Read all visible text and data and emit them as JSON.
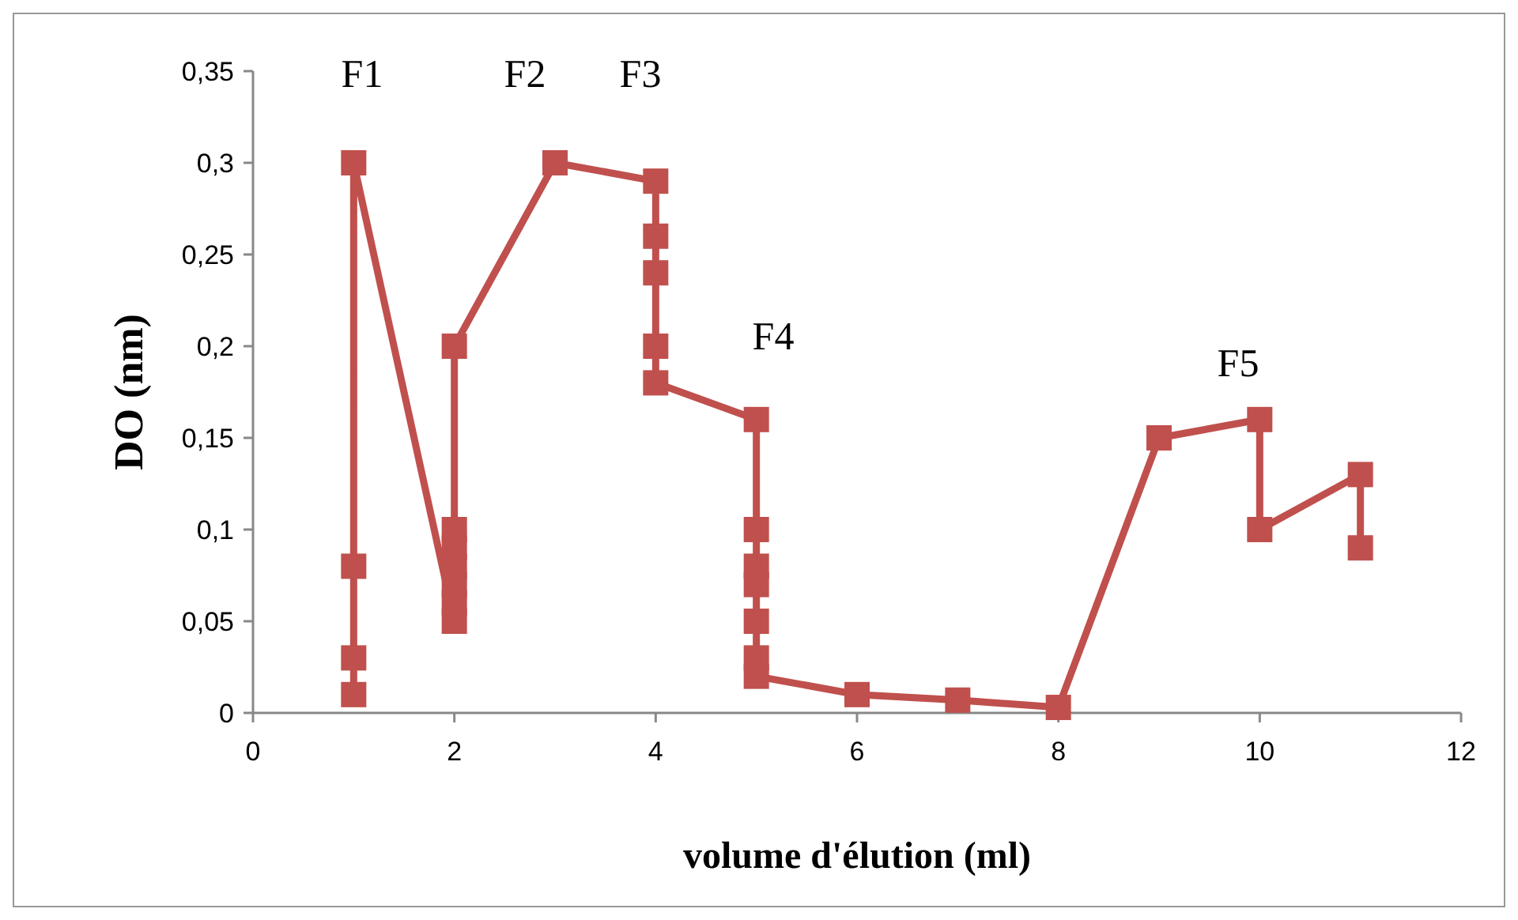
{
  "chart_data": {
    "type": "line",
    "xlabel": "volume d'élution (ml)",
    "ylabel": "DO (nm)",
    "x": [
      1,
      1,
      1,
      1,
      2,
      2,
      2,
      2,
      2,
      2,
      2,
      3,
      4,
      4,
      4,
      4,
      4,
      5,
      5,
      5,
      5,
      5,
      5,
      5,
      6,
      7,
      8,
      9,
      10,
      10,
      11,
      11
    ],
    "series": [
      {
        "color": "#c0504d",
        "values": [
          0.01,
          0.03,
          0.08,
          0.3,
          0.05,
          0.06,
          0.07,
          0.08,
          0.09,
          0.1,
          0.2,
          0.3,
          0.29,
          0.26,
          0.24,
          0.2,
          0.18,
          0.16,
          0.1,
          0.08,
          0.07,
          0.05,
          0.03,
          0.02,
          0.01,
          0.007,
          0.003,
          0.15,
          0.16,
          0.1,
          0.13,
          0.09
        ]
      }
    ],
    "xlim": [
      0,
      12
    ],
    "xticks": [
      0,
      2,
      4,
      6,
      8,
      10,
      12
    ],
    "ylim": [
      0,
      0.35
    ],
    "yticks": [
      0,
      {
        "value": 0.05,
        "label": "0,05"
      },
      {
        "value": 0.1,
        "label": "0,1"
      },
      {
        "value": 0.15,
        "label": "0,15"
      },
      {
        "value": 0.2,
        "label": "0,2"
      },
      {
        "value": 0.25,
        "label": "0,25"
      },
      {
        "value": 0.3,
        "label": "0,3"
      },
      {
        "value": 0.35,
        "label": "0,35"
      }
    ],
    "marker": "square",
    "line_style": "solid",
    "grid": false,
    "annotations": [
      "F1",
      "F2",
      "F3",
      "F4",
      "F5"
    ]
  }
}
